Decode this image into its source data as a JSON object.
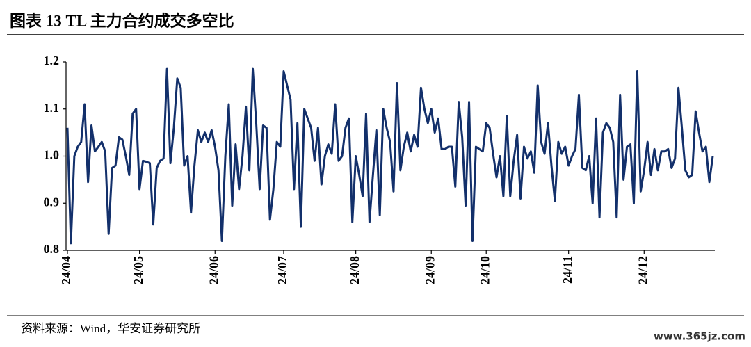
{
  "chart_data": {
    "type": "line",
    "title": "图表 13 TL 主力合约成交多空比",
    "source": "资料来源：Wind，华安证券研究所",
    "watermark": "www.365jz.com",
    "categories": [
      "24/04",
      null,
      null,
      null,
      null,
      null,
      null,
      null,
      null,
      null,
      null,
      null,
      null,
      null,
      null,
      null,
      null,
      null,
      null,
      null,
      null,
      "24/05",
      null,
      null,
      null,
      null,
      null,
      null,
      null,
      null,
      null,
      null,
      null,
      null,
      null,
      null,
      null,
      null,
      null,
      null,
      null,
      null,
      null,
      "24/06",
      null,
      null,
      null,
      null,
      null,
      null,
      null,
      null,
      null,
      null,
      null,
      null,
      null,
      null,
      null,
      null,
      null,
      null,
      null,
      "24/07",
      null,
      null,
      null,
      null,
      null,
      null,
      null,
      null,
      null,
      null,
      null,
      null,
      null,
      null,
      null,
      null,
      null,
      null,
      null,
      null,
      "24/08",
      null,
      null,
      null,
      null,
      null,
      null,
      null,
      null,
      null,
      null,
      null,
      null,
      null,
      null,
      null,
      null,
      null,
      null,
      null,
      null,
      null,
      "24/09",
      null,
      null,
      null,
      null,
      null,
      null,
      null,
      null,
      null,
      null,
      null,
      null,
      null,
      null,
      null,
      "24/10",
      null,
      null,
      null,
      null,
      null,
      null,
      null,
      null,
      null,
      null,
      null,
      null,
      null,
      null,
      null,
      null,
      null,
      null,
      null,
      null,
      null,
      null,
      null,
      "24/11",
      null,
      null,
      null,
      null,
      null,
      null,
      null,
      null,
      null,
      null,
      null,
      null,
      null,
      null,
      null,
      null,
      null,
      null,
      null,
      null,
      null,
      "24/12",
      null,
      null,
      null,
      null,
      null,
      null,
      null,
      null,
      null,
      null,
      null,
      null,
      null,
      null,
      null,
      null,
      null,
      null,
      null,
      null
    ],
    "values": [
      1.06,
      0.815,
      1.0,
      1.02,
      1.03,
      1.11,
      0.945,
      1.065,
      1.01,
      1.02,
      1.03,
      1.01,
      0.835,
      0.975,
      0.98,
      1.04,
      1.035,
      1.0,
      0.96,
      1.09,
      1.1,
      0.93,
      0.99,
      0.988,
      0.985,
      0.855,
      0.975,
      0.99,
      0.995,
      1.185,
      0.985,
      1.06,
      1.165,
      1.145,
      0.98,
      1.0,
      0.88,
      0.98,
      1.055,
      1.03,
      1.05,
      1.03,
      1.055,
      1.02,
      0.97,
      0.82,
      1.0,
      1.11,
      0.895,
      1.025,
      0.93,
      1.0,
      1.105,
      0.97,
      1.185,
      1.07,
      0.93,
      1.065,
      1.06,
      0.865,
      0.93,
      1.03,
      1.02,
      1.18,
      1.15,
      1.12,
      0.93,
      1.07,
      0.85,
      1.1,
      1.08,
      1.06,
      0.99,
      1.06,
      0.94,
      1.0,
      1.025,
      1.005,
      1.11,
      0.99,
      1.0,
      1.06,
      1.08,
      0.86,
      1.0,
      0.96,
      0.915,
      1.09,
      0.86,
      0.96,
      1.055,
      0.875,
      1.1,
      1.06,
      1.03,
      0.925,
      1.155,
      0.97,
      1.02,
      1.05,
      1.01,
      1.045,
      1.02,
      1.145,
      1.1,
      1.07,
      1.1,
      1.05,
      1.08,
      1.015,
      1.015,
      1.02,
      1.02,
      0.935,
      1.115,
      1.04,
      0.895,
      1.115,
      0.82,
      1.02,
      1.015,
      1.01,
      1.07,
      1.06,
      1.005,
      0.955,
      1.0,
      0.915,
      1.085,
      0.915,
      0.99,
      1.045,
      0.91,
      1.02,
      0.995,
      1.01,
      0.965,
      1.15,
      1.03,
      1.005,
      1.07,
      0.98,
      0.905,
      1.03,
      1.005,
      1.02,
      0.98,
      1.0,
      1.015,
      1.13,
      0.975,
      0.97,
      1.0,
      0.9,
      1.08,
      0.87,
      1.05,
      1.07,
      1.06,
      1.03,
      0.87,
      1.13,
      0.95,
      1.02,
      1.025,
      0.9,
      1.18,
      0.925,
      0.97,
      1.03,
      0.96,
      1.015,
      0.97,
      1.01,
      1.01,
      1.015,
      0.975,
      0.995,
      1.145,
      1.06,
      0.97,
      0.955,
      0.96,
      1.095,
      1.05,
      1.01,
      1.02,
      0.945,
      1.0
    ],
    "color": "#13306b",
    "ylim": [
      0.8,
      1.2
    ],
    "yticks": [
      0.8,
      0.9,
      {
        "value": 1,
        "label": "1.0"
      },
      1.1,
      1.2
    ],
    "grid": false
  }
}
